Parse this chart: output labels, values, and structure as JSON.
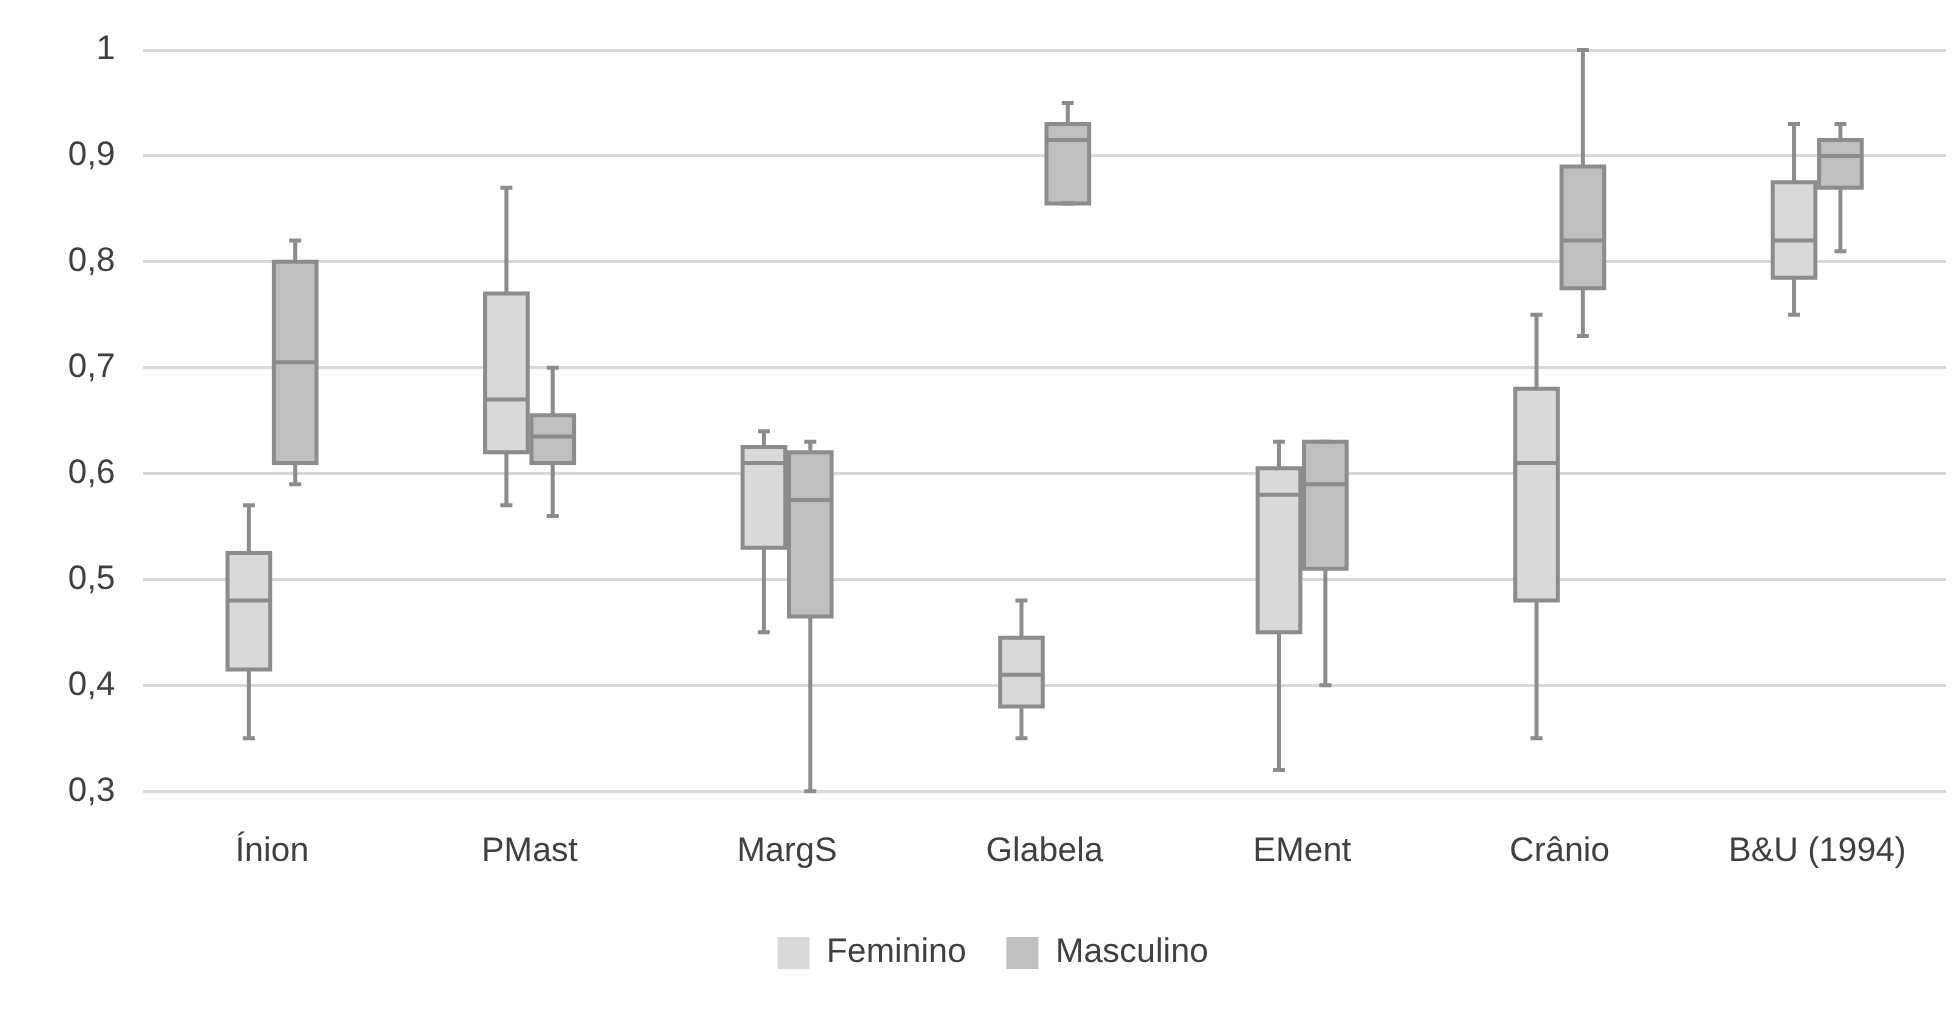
{
  "chart_data": {
    "type": "box",
    "categories": [
      "Ínion",
      "PMast",
      "MargS",
      "Glabela",
      "EMent",
      "Crânio",
      "B&U (1994)"
    ],
    "series": [
      {
        "name": "Feminino",
        "color": "#d9d9d9",
        "boxes": [
          {
            "low": 0.35,
            "q1": 0.415,
            "median": 0.48,
            "q3": 0.525,
            "high": 0.57
          },
          {
            "low": 0.57,
            "q1": 0.62,
            "median": 0.67,
            "q3": 0.77,
            "high": 0.87
          },
          {
            "low": 0.45,
            "q1": 0.53,
            "median": 0.61,
            "q3": 0.625,
            "high": 0.64
          },
          {
            "low": 0.35,
            "q1": 0.38,
            "median": 0.41,
            "q3": 0.445,
            "high": 0.48
          },
          {
            "low": 0.32,
            "q1": 0.45,
            "median": 0.58,
            "q3": 0.605,
            "high": 0.63
          },
          {
            "low": 0.35,
            "q1": 0.48,
            "median": 0.61,
            "q3": 0.68,
            "high": 0.75
          },
          {
            "low": 0.75,
            "q1": 0.785,
            "median": 0.82,
            "q3": 0.875,
            "high": 0.93
          }
        ]
      },
      {
        "name": "Masculino",
        "color": "#bfbfbf",
        "boxes": [
          {
            "low": 0.59,
            "q1": 0.61,
            "median": 0.705,
            "q3": 0.8,
            "high": 0.82
          },
          {
            "low": 0.56,
            "q1": 0.61,
            "median": 0.635,
            "q3": 0.655,
            "high": 0.7
          },
          {
            "low": 0.3,
            "q1": 0.465,
            "median": 0.575,
            "q3": 0.62,
            "high": 0.63
          },
          {
            "low": 0.855,
            "q1": 0.855,
            "median": 0.915,
            "q3": 0.93,
            "high": 0.95
          },
          {
            "low": 0.4,
            "q1": 0.51,
            "median": 0.59,
            "q3": 0.63,
            "high": 0.63
          },
          {
            "low": 0.73,
            "q1": 0.775,
            "median": 0.82,
            "q3": 0.89,
            "high": 1
          },
          {
            "low": 0.81,
            "q1": 0.87,
            "median": 0.9,
            "q3": 0.915,
            "high": 0.93
          }
        ]
      }
    ],
    "ylim": [
      0.3,
      1
    ],
    "yticks": [
      {
        "value": 0.3,
        "label": "0,3"
      },
      {
        "value": 0.4,
        "label": "0,4"
      },
      {
        "value": 0.5,
        "label": "0,5"
      },
      {
        "value": 0.6,
        "label": "0,6"
      },
      {
        "value": 0.7,
        "label": "0,7"
      },
      {
        "value": 0.8,
        "label": "0,8"
      },
      {
        "value": 0.9,
        "label": "0,9"
      },
      {
        "value": 1,
        "label": "1"
      }
    ],
    "grid": "y",
    "legend": "bottom"
  }
}
